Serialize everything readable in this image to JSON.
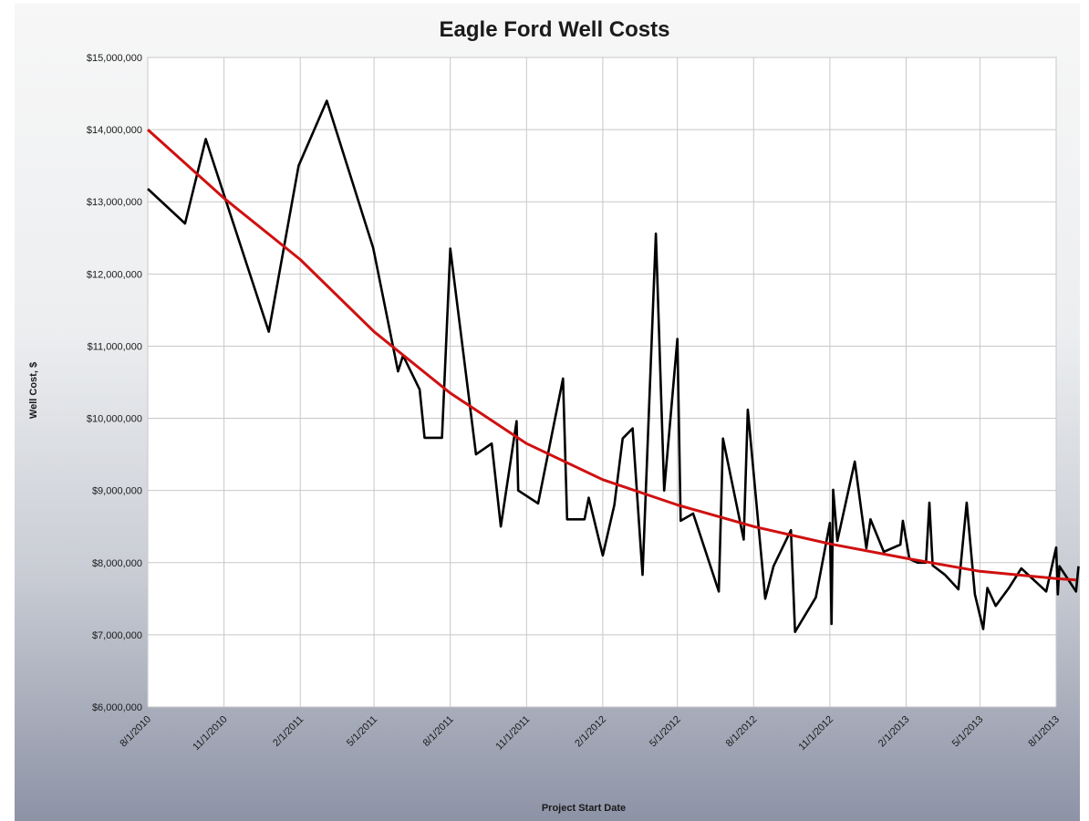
{
  "chart_data": {
    "type": "line",
    "title": "Eagle Ford Well Costs",
    "xlabel": "Project Start Date",
    "ylabel": "Well Cost, $",
    "x_tick_labels": [
      "8/1/2010",
      "11/1/2010",
      "2/1/2011",
      "5/1/2011",
      "8/1/2011",
      "11/1/2011",
      "2/1/2012",
      "5/1/2012",
      "8/1/2012",
      "11/1/2012",
      "2/1/2013",
      "5/1/2013",
      "8/1/2013"
    ],
    "y_tick_labels": [
      "$6,000,000",
      "$7,000,000",
      "$8,000,000",
      "$9,000,000",
      "$10,000,000",
      "$11,000,000",
      "$12,000,000",
      "$13,000,000",
      "$14,000,000",
      "$15,000,000"
    ],
    "xlim": [
      "2010-08-01",
      "2013-08-01"
    ],
    "ylim": [
      6000000,
      15000000
    ],
    "grid": true,
    "series": [
      {
        "color": "#000000",
        "points": [
          [
            "2010-08-01",
            13180000
          ],
          [
            "2010-09-15",
            12700000
          ],
          [
            "2010-10-10",
            13870000
          ],
          [
            "2010-12-25",
            11200000
          ],
          [
            "2011-01-30",
            13500000
          ],
          [
            "2011-03-05",
            14400000
          ],
          [
            "2011-04-30",
            12360000
          ],
          [
            "2011-05-30",
            10650000
          ],
          [
            "2011-06-05",
            10870000
          ],
          [
            "2011-06-25",
            10400000
          ],
          [
            "2011-07-01",
            9730000
          ],
          [
            "2011-07-22",
            9730000
          ],
          [
            "2011-08-01",
            12350000
          ],
          [
            "2011-09-01",
            9500000
          ],
          [
            "2011-09-20",
            9650000
          ],
          [
            "2011-10-01",
            8500000
          ],
          [
            "2011-10-20",
            9960000
          ],
          [
            "2011-10-22",
            9000000
          ],
          [
            "2011-11-15",
            8820000
          ],
          [
            "2011-12-15",
            10550000
          ],
          [
            "2011-12-20",
            8600000
          ],
          [
            "2012-01-10",
            8600000
          ],
          [
            "2012-01-15",
            8900000
          ],
          [
            "2012-02-01",
            8100000
          ],
          [
            "2012-02-15",
            8800000
          ],
          [
            "2012-02-25",
            9720000
          ],
          [
            "2012-03-08",
            9860000
          ],
          [
            "2012-03-20",
            7830000
          ],
          [
            "2012-04-05",
            12560000
          ],
          [
            "2012-04-15",
            9000000
          ],
          [
            "2012-05-01",
            11100000
          ],
          [
            "2012-05-05",
            8580000
          ],
          [
            "2012-05-20",
            8680000
          ],
          [
            "2012-06-20",
            7600000
          ],
          [
            "2012-06-25",
            9720000
          ],
          [
            "2012-07-20",
            8320000
          ],
          [
            "2012-07-25",
            10120000
          ],
          [
            "2012-08-15",
            7500000
          ],
          [
            "2012-08-25",
            7950000
          ],
          [
            "2012-09-15",
            8450000
          ],
          [
            "2012-09-20",
            7040000
          ],
          [
            "2012-10-15",
            7520000
          ],
          [
            "2012-11-01",
            8550000
          ],
          [
            "2012-11-03",
            7150000
          ],
          [
            "2012-11-05",
            9010000
          ],
          [
            "2012-11-10",
            8300000
          ],
          [
            "2012-12-01",
            9400000
          ],
          [
            "2012-12-15",
            8200000
          ],
          [
            "2012-12-20",
            8600000
          ],
          [
            "2013-01-05",
            8150000
          ],
          [
            "2013-01-25",
            8250000
          ],
          [
            "2013-01-28",
            8580000
          ],
          [
            "2013-02-05",
            8050000
          ],
          [
            "2013-02-15",
            8000000
          ],
          [
            "2013-02-25",
            8000000
          ],
          [
            "2013-03-01",
            8830000
          ],
          [
            "2013-03-05",
            7960000
          ],
          [
            "2013-03-20",
            7830000
          ],
          [
            "2013-04-05",
            7630000
          ],
          [
            "2013-04-15",
            8830000
          ],
          [
            "2013-04-25",
            7560000
          ],
          [
            "2013-05-05",
            7080000
          ],
          [
            "2013-05-10",
            7650000
          ],
          [
            "2013-05-20",
            7400000
          ],
          [
            "2013-06-05",
            7650000
          ],
          [
            "2013-06-20",
            7920000
          ],
          [
            "2013-07-20",
            7600000
          ],
          [
            "2013-08-01",
            8210000
          ],
          [
            "2013-08-03",
            7560000
          ],
          [
            "2013-08-05",
            7950000
          ],
          [
            "2013-08-25",
            7600000
          ],
          [
            "2013-08-28",
            7950000
          ]
        ]
      },
      {
        "color": "#d01010",
        "points": [
          [
            "2010-08-01",
            14000000
          ],
          [
            "2010-11-01",
            13050000
          ],
          [
            "2011-02-01",
            12200000
          ],
          [
            "2011-05-01",
            11200000
          ],
          [
            "2011-08-01",
            10350000
          ],
          [
            "2011-11-01",
            9650000
          ],
          [
            "2012-02-01",
            9150000
          ],
          [
            "2012-05-01",
            8800000
          ],
          [
            "2012-08-01",
            8500000
          ],
          [
            "2012-11-01",
            8260000
          ],
          [
            "2013-02-01",
            8060000
          ],
          [
            "2013-05-01",
            7880000
          ],
          [
            "2013-08-01",
            7780000
          ],
          [
            "2013-08-25",
            7760000
          ]
        ]
      }
    ]
  }
}
